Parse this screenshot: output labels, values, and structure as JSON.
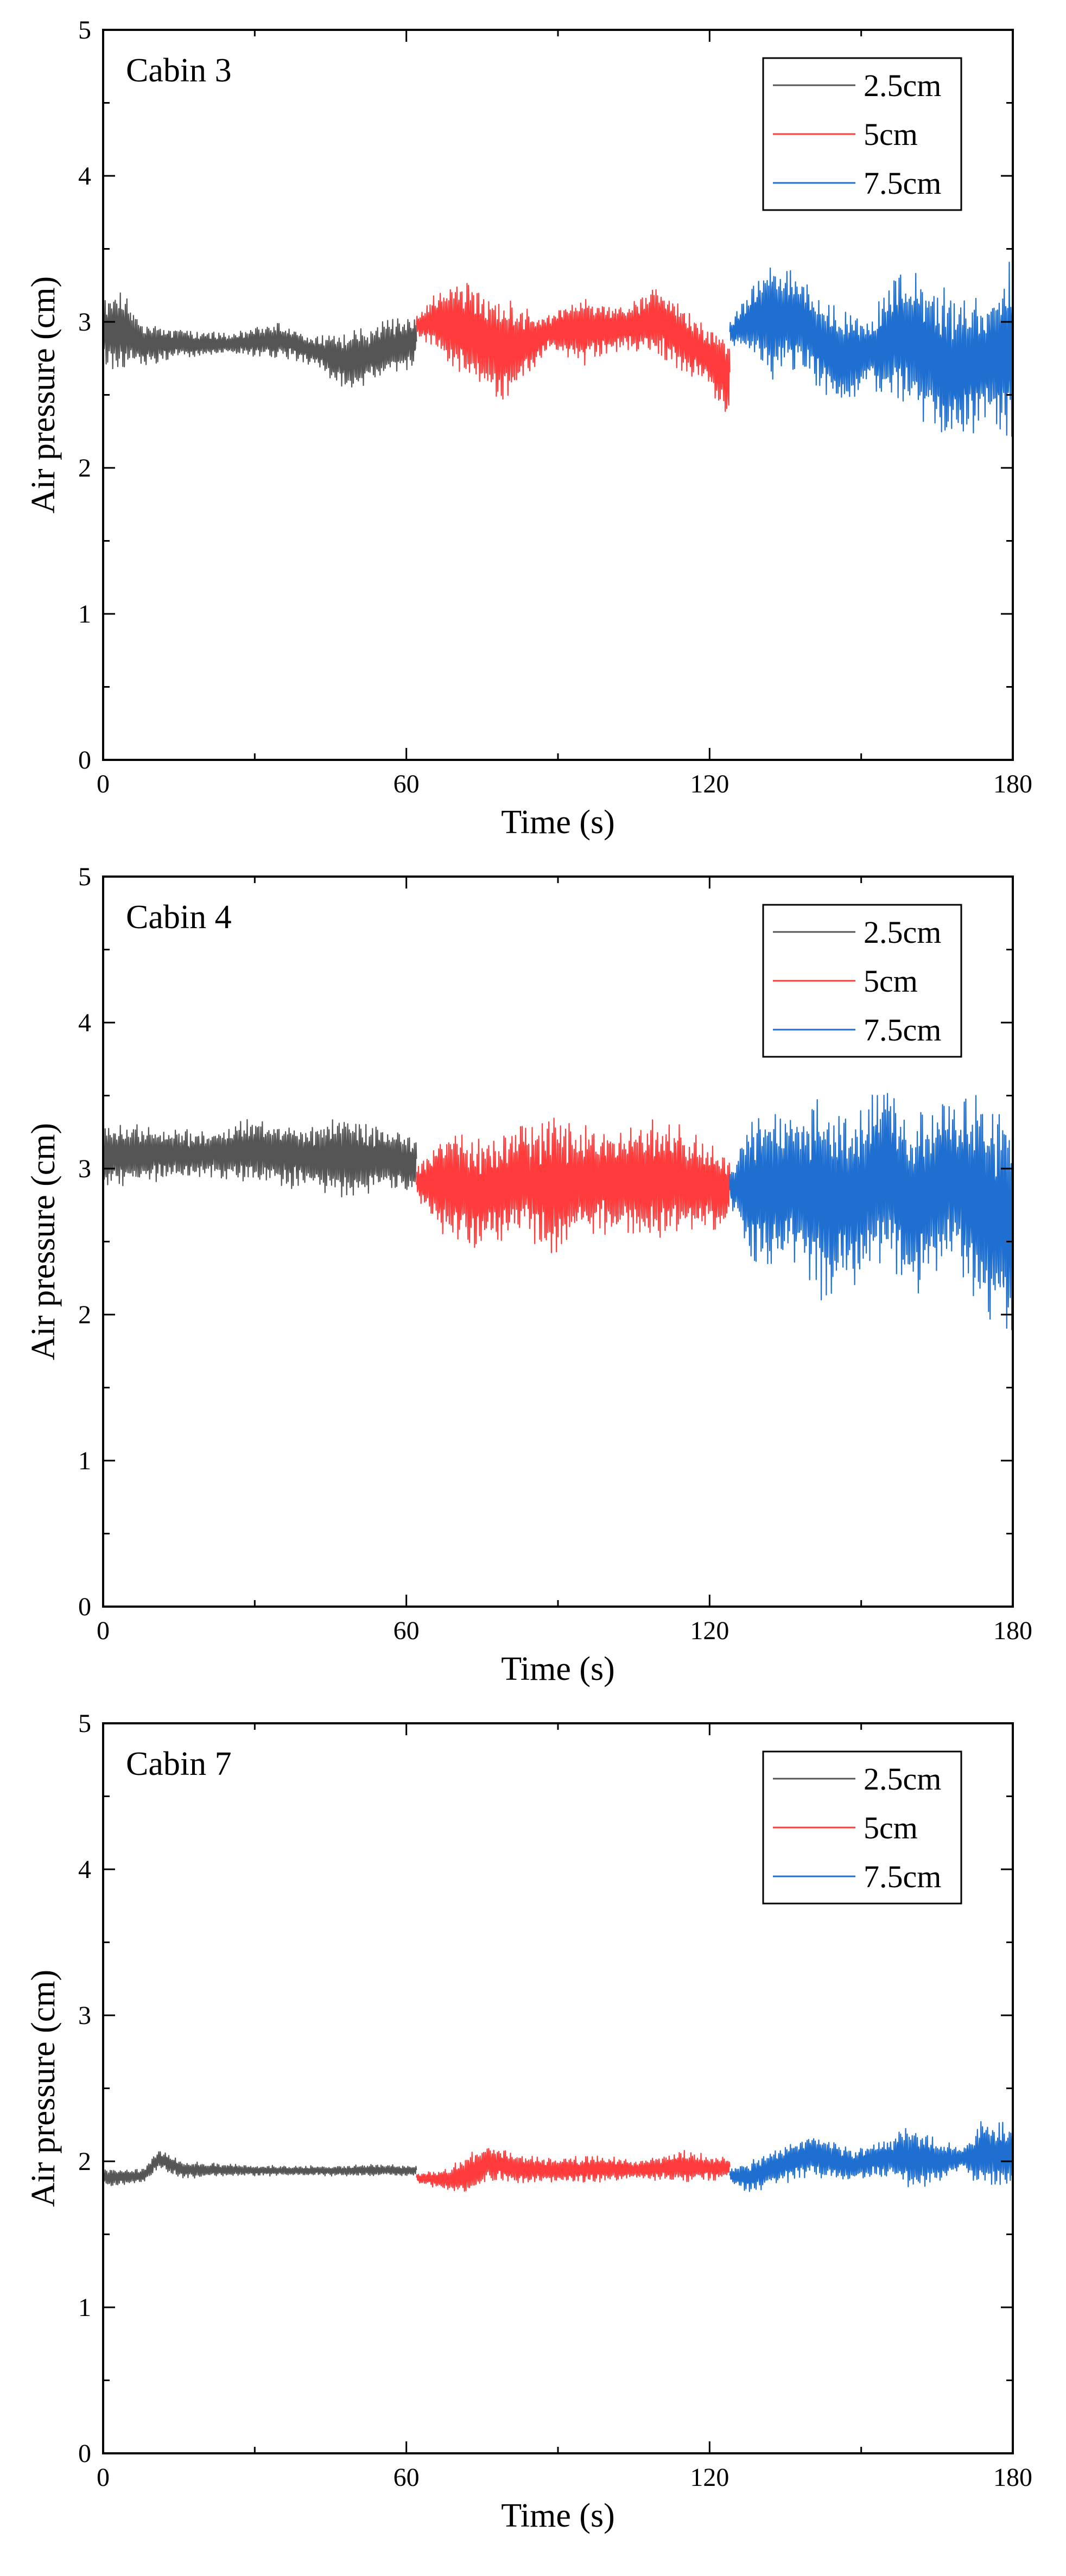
{
  "chart_data": [
    {
      "type": "line",
      "title": "Cabin 3",
      "xlabel": "Time (s)",
      "ylabel": "Air pressure (cm)",
      "xlim": [
        0,
        180
      ],
      "ylim": [
        0,
        5
      ],
      "xticks": [
        0,
        60,
        120,
        180
      ],
      "xtick_labels": [
        "0",
        "60",
        "120",
        "180"
      ],
      "yticks": [
        0,
        1,
        2,
        3,
        4,
        5
      ],
      "ytick_labels": [
        "0",
        "1",
        "2",
        "3",
        "4",
        "5"
      ],
      "legend_position": "top-right",
      "series": [
        {
          "name": "2.5cm",
          "color": "#555555",
          "x_range": [
            0,
            62
          ],
          "envelope": [
            [
              0,
              2.7,
              3.15
            ],
            [
              3,
              2.65,
              3.25
            ],
            [
              8,
              2.7,
              3.0
            ],
            [
              15,
              2.75,
              2.95
            ],
            [
              25,
              2.78,
              2.92
            ],
            [
              35,
              2.75,
              3.0
            ],
            [
              42,
              2.7,
              2.9
            ],
            [
              48,
              2.5,
              2.95
            ],
            [
              55,
              2.6,
              3.0
            ],
            [
              62,
              2.7,
              3.05
            ]
          ]
        },
        {
          "name": "5cm",
          "color": "#ff3b3b",
          "x_range": [
            62,
            124
          ],
          "envelope": [
            [
              62,
              2.9,
              3.05
            ],
            [
              66,
              2.8,
              3.2
            ],
            [
              72,
              2.6,
              3.3
            ],
            [
              80,
              2.45,
              3.15
            ],
            [
              88,
              2.8,
              3.05
            ],
            [
              95,
              2.7,
              3.2
            ],
            [
              102,
              2.8,
              3.1
            ],
            [
              110,
              2.75,
              3.25
            ],
            [
              118,
              2.6,
              3.0
            ],
            [
              124,
              2.35,
              2.9
            ]
          ]
        },
        {
          "name": "7.5cm",
          "color": "#1f6fd1",
          "x_range": [
            124,
            180
          ],
          "envelope": [
            [
              124,
              2.85,
              3.0
            ],
            [
              128,
              2.8,
              3.2
            ],
            [
              132,
              2.6,
              3.45
            ],
            [
              138,
              2.7,
              3.3
            ],
            [
              145,
              2.4,
              3.1
            ],
            [
              152,
              2.55,
              3.05
            ],
            [
              158,
              2.4,
              3.4
            ],
            [
              163,
              2.3,
              3.3
            ],
            [
              168,
              2.15,
              3.2
            ],
            [
              175,
              2.3,
              3.15
            ],
            [
              180,
              2.2,
              3.45
            ]
          ]
        }
      ]
    },
    {
      "type": "line",
      "title": "Cabin 4",
      "xlabel": "Time (s)",
      "ylabel": "Air pressure (cm)",
      "xlim": [
        0,
        180
      ],
      "ylim": [
        0,
        5
      ],
      "xticks": [
        0,
        60,
        120,
        180
      ],
      "xtick_labels": [
        "0",
        "60",
        "120",
        "180"
      ],
      "yticks": [
        0,
        1,
        2,
        3,
        4,
        5
      ],
      "ytick_labels": [
        "0",
        "1",
        "2",
        "3",
        "4",
        "5"
      ],
      "legend_position": "top-right",
      "series": [
        {
          "name": "2.5cm",
          "color": "#555555",
          "x_range": [
            0,
            62
          ],
          "envelope": [
            [
              0,
              2.85,
              3.3
            ],
            [
              10,
              2.9,
              3.3
            ],
            [
              20,
              2.95,
              3.25
            ],
            [
              30,
              2.9,
              3.35
            ],
            [
              40,
              2.85,
              3.3
            ],
            [
              48,
              2.8,
              3.35
            ],
            [
              55,
              2.85,
              3.3
            ],
            [
              62,
              2.8,
              3.25
            ]
          ]
        },
        {
          "name": "5cm",
          "color": "#ff3b3b",
          "x_range": [
            62,
            124
          ],
          "envelope": [
            [
              62,
              2.8,
              3.0
            ],
            [
              68,
              2.5,
              3.3
            ],
            [
              75,
              2.45,
              3.2
            ],
            [
              82,
              2.55,
              3.3
            ],
            [
              90,
              2.4,
              3.35
            ],
            [
              98,
              2.55,
              3.3
            ],
            [
              106,
              2.5,
              3.35
            ],
            [
              114,
              2.55,
              3.3
            ],
            [
              124,
              2.6,
              3.1
            ]
          ]
        },
        {
          "name": "7.5cm",
          "color": "#1f6fd1",
          "x_range": [
            124,
            180
          ],
          "envelope": [
            [
              124,
              2.75,
              3.0
            ],
            [
              130,
              2.2,
              3.5
            ],
            [
              136,
              2.4,
              3.4
            ],
            [
              142,
              2.1,
              3.5
            ],
            [
              150,
              2.2,
              3.45
            ],
            [
              155,
              2.4,
              3.65
            ],
            [
              160,
              2.1,
              3.4
            ],
            [
              168,
              2.4,
              3.5
            ],
            [
              175,
              1.95,
              3.5
            ],
            [
              180,
              1.8,
              3.5
            ]
          ]
        }
      ]
    },
    {
      "type": "line",
      "title": "Cabin 7",
      "xlabel": "Time (s)",
      "ylabel": "Air pressure (cm)",
      "xlim": [
        0,
        180
      ],
      "ylim": [
        0,
        5
      ],
      "xticks": [
        0,
        60,
        120,
        180
      ],
      "xtick_labels": [
        "0",
        "60",
        "120",
        "180"
      ],
      "yticks": [
        0,
        1,
        2,
        3,
        4,
        5
      ],
      "ytick_labels": [
        "0",
        "1",
        "2",
        "3",
        "4",
        "5"
      ],
      "legend_position": "top-right",
      "series": [
        {
          "name": "2.5cm",
          "color": "#555555",
          "x_range": [
            0,
            62
          ],
          "envelope": [
            [
              0,
              1.82,
              1.95
            ],
            [
              8,
              1.85,
              1.95
            ],
            [
              11,
              1.95,
              2.08
            ],
            [
              16,
              1.88,
              2.0
            ],
            [
              25,
              1.9,
              1.98
            ],
            [
              35,
              1.9,
              1.97
            ],
            [
              45,
              1.9,
              1.97
            ],
            [
              55,
              1.9,
              1.98
            ],
            [
              62,
              1.9,
              1.97
            ]
          ]
        },
        {
          "name": "5cm",
          "color": "#ff3b3b",
          "x_range": [
            62,
            124
          ],
          "envelope": [
            [
              62,
              1.85,
              1.92
            ],
            [
              68,
              1.8,
              1.95
            ],
            [
              72,
              1.75,
              2.05
            ],
            [
              76,
              1.85,
              2.12
            ],
            [
              82,
              1.85,
              2.05
            ],
            [
              90,
              1.85,
              2.02
            ],
            [
              98,
              1.85,
              2.05
            ],
            [
              106,
              1.88,
              2.0
            ],
            [
              114,
              1.85,
              2.08
            ],
            [
              124,
              1.88,
              2.02
            ]
          ]
        },
        {
          "name": "7.5cm",
          "color": "#1f6fd1",
          "x_range": [
            124,
            180
          ],
          "envelope": [
            [
              124,
              1.85,
              1.95
            ],
            [
              128,
              1.78,
              2.0
            ],
            [
              135,
              1.85,
              2.12
            ],
            [
              140,
              1.9,
              2.2
            ],
            [
              148,
              1.85,
              2.1
            ],
            [
              155,
              1.9,
              2.15
            ],
            [
              160,
              1.8,
              2.25
            ],
            [
              165,
              1.85,
              2.15
            ],
            [
              170,
              1.95,
              2.1
            ],
            [
              174,
              1.8,
              2.3
            ],
            [
              180,
              1.85,
              2.25
            ]
          ]
        }
      ]
    }
  ]
}
